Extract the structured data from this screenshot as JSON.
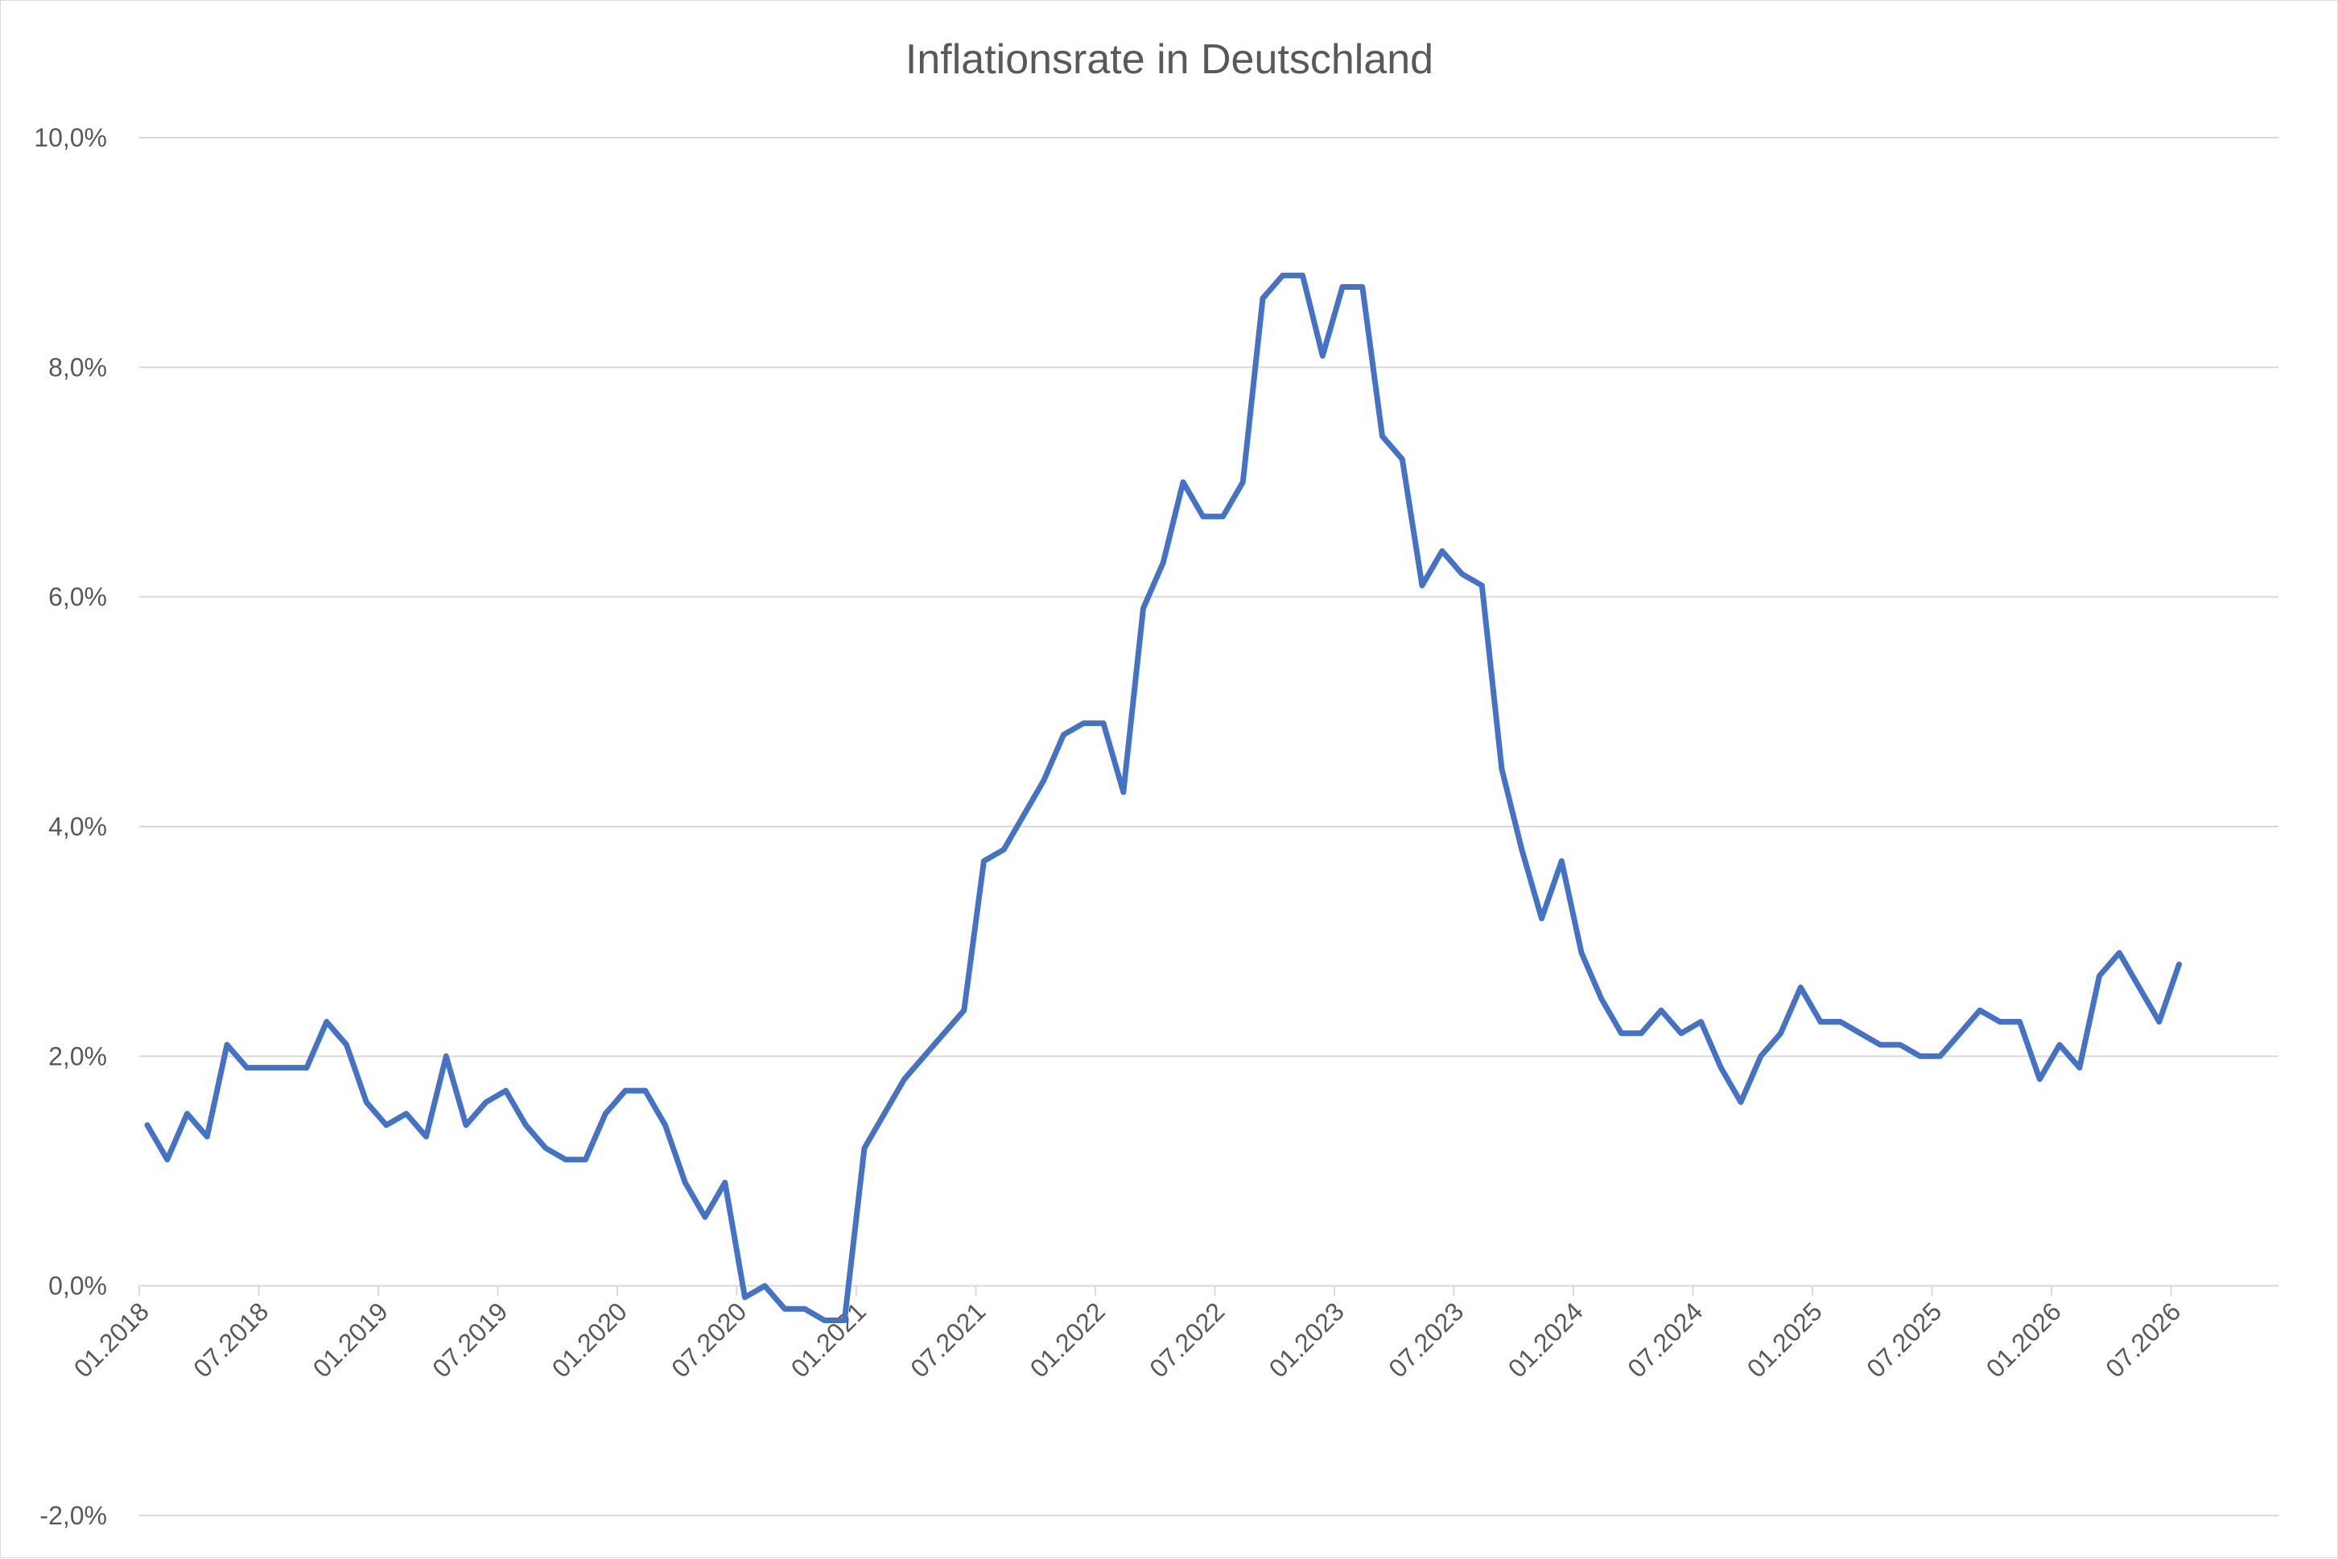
{
  "chart_data": {
    "type": "line",
    "title": "Inflationsrate in Deutschland",
    "xlabel": "",
    "ylabel": "",
    "ylim": [
      -2.0,
      10.0
    ],
    "y_ticks": [
      "10,0%",
      "8,0%",
      "6,0%",
      "4,0%",
      "2,0%",
      "0,0%",
      "-2,0%"
    ],
    "y_tick_values": [
      10,
      8,
      6,
      4,
      2,
      0,
      -2
    ],
    "x_tick_labels": [
      "01.2018",
      "07.2018",
      "01.2019",
      "07.2019",
      "01.2020",
      "07.2020",
      "01.2021",
      "07.2021",
      "01.2022",
      "07.2022",
      "01.2023",
      "07.2023",
      "01.2024",
      "07.2024",
      "01.2025",
      "07.2025",
      "01.2026",
      "07.2026"
    ],
    "grid": true,
    "legend": "none",
    "color": "#4472C4",
    "series": [
      {
        "start": "01.2018",
        "values": [
          1.4,
          1.1,
          1.5,
          1.3,
          2.1,
          1.9,
          1.9,
          1.9,
          1.9,
          2.3,
          2.1,
          1.6,
          1.4,
          1.5,
          1.3,
          2.0,
          1.4,
          1.6,
          1.7,
          1.4,
          1.2,
          1.1,
          1.1,
          1.5,
          1.7,
          1.7,
          1.4,
          0.9,
          0.6,
          0.9,
          -0.1,
          0.0,
          -0.2,
          -0.2,
          -0.3,
          -0.3,
          1.2,
          1.5,
          1.8,
          2.0,
          2.2,
          2.4,
          3.7,
          3.8,
          4.1,
          4.4,
          4.8,
          4.9,
          4.9,
          4.3,
          5.9,
          6.3,
          7.0,
          6.7,
          6.7,
          7.0,
          8.6,
          8.8,
          8.8,
          8.1,
          8.7,
          8.7,
          7.4,
          7.2,
          6.1,
          6.4,
          6.2,
          6.1,
          4.5,
          3.8,
          3.2,
          3.7,
          2.9,
          2.5,
          2.2,
          2.2,
          2.4,
          2.2,
          2.3,
          1.9,
          1.6,
          2.0,
          2.2,
          2.6,
          2.3,
          2.3,
          2.2,
          2.1,
          2.1,
          2.0,
          2.0,
          2.2,
          2.4,
          2.3,
          2.3,
          1.8,
          2.1,
          1.9,
          2.7,
          2.9,
          2.6,
          2.3,
          2.8
        ]
      }
    ]
  }
}
